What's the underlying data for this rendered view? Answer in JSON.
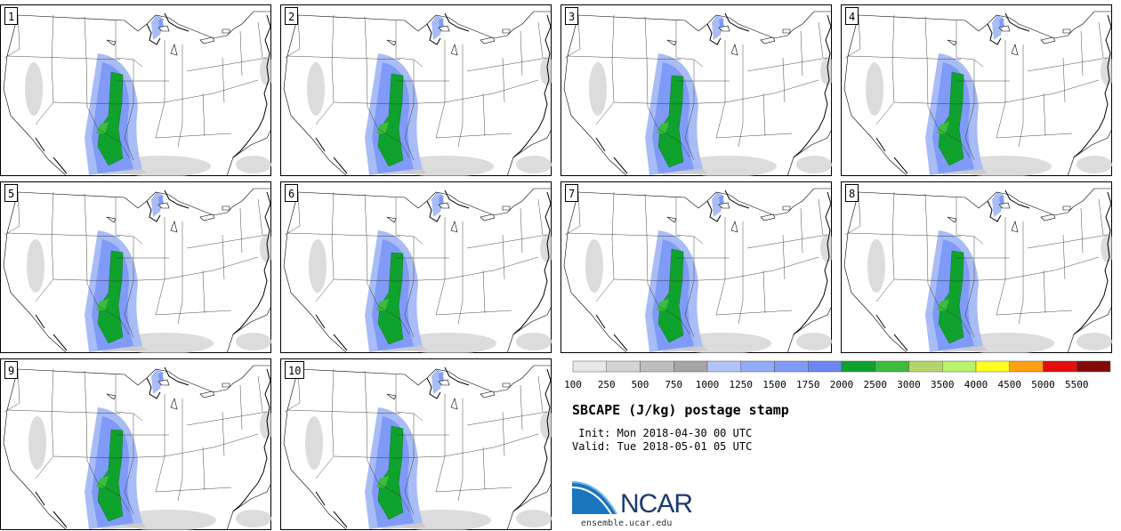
{
  "panels": [
    "1",
    "2",
    "3",
    "4",
    "5",
    "6",
    "7",
    "8",
    "9",
    "10"
  ],
  "legend": {
    "colors": [
      "#e8e8e8",
      "#d3d3d3",
      "#bebebe",
      "#a5a5a5",
      "#b0c4f8",
      "#93acf7",
      "#7f9af7",
      "#6e86f4",
      "#0fa32e",
      "#3dbb3d",
      "#b5d56b",
      "#b8f36b",
      "#ffff20",
      "#ffa010",
      "#e40c0c",
      "#850808"
    ],
    "ticks": [
      "100",
      "250",
      "500",
      "750",
      "1000",
      "1250",
      "1500",
      "1750",
      "2000",
      "2500",
      "3000",
      "3500",
      "4000",
      "4500",
      "5000",
      "5500"
    ]
  },
  "title": "SBCAPE (J/kg) postage stamp",
  "init": " Init: Mon 2018-04-30 00 UTC",
  "valid": "Valid: Tue 2018-05-01 05 UTC",
  "logo_text": "NCAR",
  "site": "ensemble.ucar.edu"
}
